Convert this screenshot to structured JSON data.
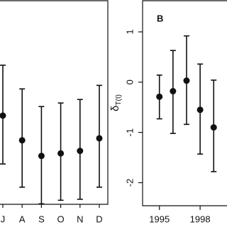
{
  "chart_data": [
    {
      "type": "errorbar",
      "categories": [
        "J",
        "A",
        "S",
        "O",
        "N",
        "D"
      ],
      "values": [
        -0.66,
        -1.15,
        -1.46,
        -1.41,
        -1.36,
        -1.11
      ],
      "lower": [
        -1.62,
        -2.08,
        -2.41,
        -2.34,
        -2.32,
        -2.08
      ],
      "upper": [
        0.34,
        -0.13,
        -0.48,
        -0.41,
        -0.34,
        -0.06
      ],
      "ylim": [
        -2.42,
        1.62
      ],
      "color": "#111111"
    },
    {
      "type": "errorbar",
      "panel_label": "B",
      "ylabel": {
        "main": "δ",
        "sub": "T(t)"
      },
      "x": [
        1995,
        1996,
        1997,
        1998,
        1999
      ],
      "values": [
        -0.29,
        -0.18,
        0.03,
        -0.55,
        -0.9
      ],
      "lower": [
        -0.73,
        -1.02,
        -0.84,
        -1.43,
        -1.78
      ],
      "upper": [
        0.14,
        0.63,
        0.92,
        0.36,
        0.04
      ],
      "xlim": [
        1993.76,
        1999.98
      ],
      "xticks": [
        1995,
        1998
      ],
      "ylim": [
        -2.43,
        1.62
      ],
      "yticks": [
        1,
        0,
        -1,
        -2
      ],
      "color": "#111111"
    }
  ]
}
